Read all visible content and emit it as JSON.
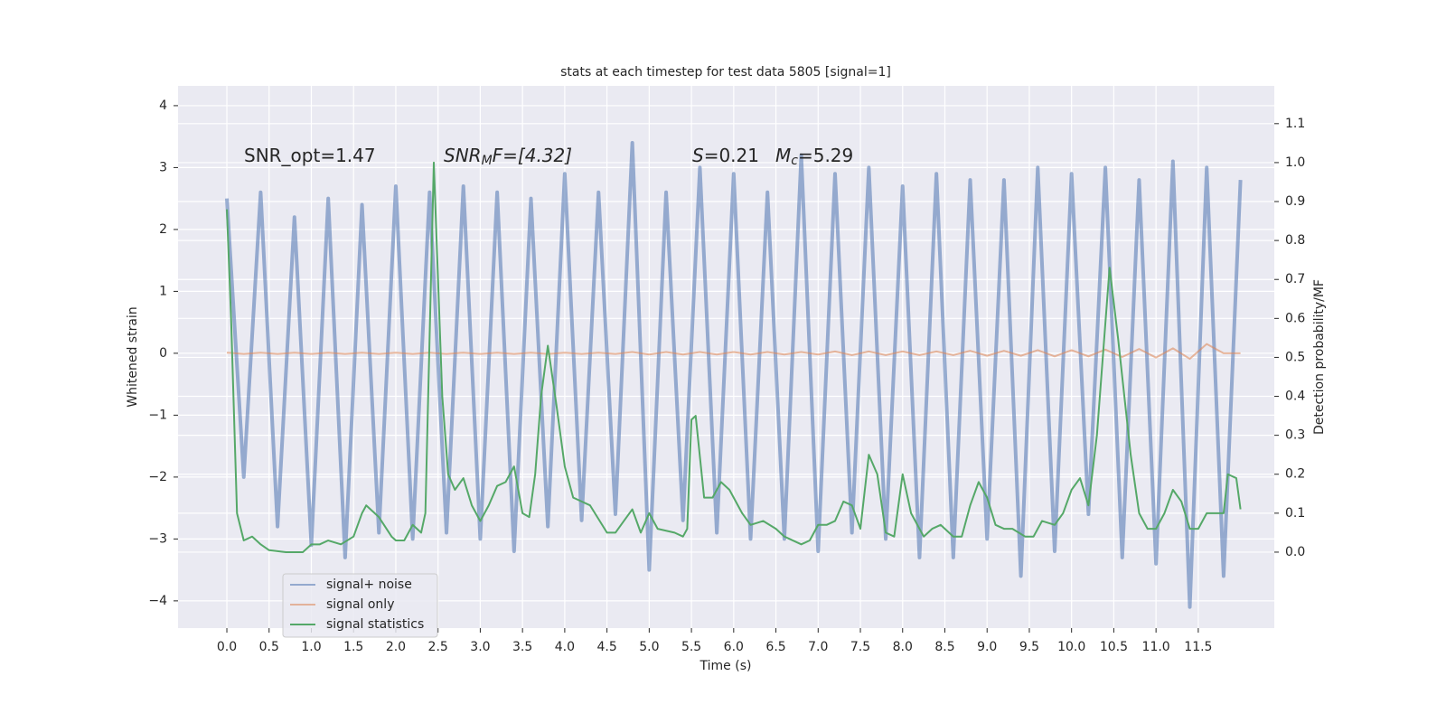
{
  "chart_data": {
    "type": "line",
    "title": "stats at each timestep for test data 5805 [signal=1]",
    "xlabel": "Time (s)",
    "ylabel": "Whitened strain",
    "y2label": "Detection probability/MF",
    "annotations": [
      {
        "parts": [
          "SNR_opt=1.47"
        ]
      },
      {
        "parts": [
          "SNR",
          "M",
          "F=[4.32]"
        ]
      },
      {
        "parts": [
          "S",
          "=0.21"
        ]
      },
      {
        "parts": [
          "M",
          "c",
          "=5.29"
        ]
      }
    ],
    "xlim": [
      -0.578,
      12.4
    ],
    "ylim": [
      -4.44,
      4.32
    ],
    "y2lim": [
      -0.195,
      1.197
    ],
    "grid": true,
    "legend": "lower left",
    "xticks": [
      {
        "value": 0,
        "label": "0.0"
      },
      {
        "value": 0.5,
        "label": "0.5"
      },
      {
        "value": 1,
        "label": "1.0"
      },
      {
        "value": 1.5,
        "label": "1.5"
      },
      {
        "value": 2,
        "label": "2.0"
      },
      {
        "value": 2.5,
        "label": "2.5"
      },
      {
        "value": 3,
        "label": "3.0"
      },
      {
        "value": 3.5,
        "label": "3.5"
      },
      {
        "value": 4,
        "label": "4.0"
      },
      {
        "value": 4.5,
        "label": "4.5"
      },
      {
        "value": 5,
        "label": "5.0"
      },
      {
        "value": 5.5,
        "label": "5.5"
      },
      {
        "value": 6,
        "label": "6.0"
      },
      {
        "value": 6.5,
        "label": "6.5"
      },
      {
        "value": 7,
        "label": "7.0"
      },
      {
        "value": 7.5,
        "label": "7.5"
      },
      {
        "value": 8,
        "label": "8.0"
      },
      {
        "value": 8.5,
        "label": "8.5"
      },
      {
        "value": 9,
        "label": "9.0"
      },
      {
        "value": 9.5,
        "label": "9.5"
      },
      {
        "value": 10,
        "label": "10.0"
      },
      {
        "value": 10.5,
        "label": "10.5"
      },
      {
        "value": 11,
        "label": "11.0"
      },
      {
        "value": 11.5,
        "label": "11.5"
      }
    ],
    "yticks": [
      {
        "value": -4,
        "label": "−4"
      },
      {
        "value": -3,
        "label": "−3"
      },
      {
        "value": -2,
        "label": "−2"
      },
      {
        "value": -1,
        "label": "−1"
      },
      0,
      1,
      2,
      3,
      4
    ],
    "y2ticks": [
      {
        "value": 0,
        "label": "0.0"
      },
      {
        "value": 0.1,
        "label": "0.1"
      },
      {
        "value": 0.2,
        "label": "0.2"
      },
      {
        "value": 0.3,
        "label": "0.3"
      },
      {
        "value": 0.4,
        "label": "0.4"
      },
      {
        "value": 0.5,
        "label": "0.5"
      },
      {
        "value": 0.6,
        "label": "0.6"
      },
      {
        "value": 0.7,
        "label": "0.7"
      },
      {
        "value": 0.8,
        "label": "0.8"
      },
      {
        "value": 0.9,
        "label": "0.9"
      },
      {
        "value": 1.0,
        "label": "1.0"
      },
      {
        "value": 1.1,
        "label": "1.1"
      }
    ],
    "series": [
      {
        "name": "signal+ noise",
        "color": "#4c72b0",
        "x": [
          0,
          0.2,
          0.4,
          0.6,
          0.8,
          1,
          1.2,
          1.4,
          1.6,
          1.8,
          2,
          2.2,
          2.4,
          2.6,
          2.8,
          3,
          3.2,
          3.4,
          3.6,
          3.8,
          4,
          4.2,
          4.4,
          4.6,
          4.8,
          5,
          5.2,
          5.4,
          5.6,
          5.8,
          6,
          6.2,
          6.4,
          6.6,
          6.8,
          7,
          7.2,
          7.4,
          7.6,
          7.8,
          8,
          8.2,
          8.4,
          8.6,
          8.8,
          9,
          9.2,
          9.4,
          9.6,
          9.8,
          10,
          10.2,
          10.4,
          10.6,
          10.8,
          11,
          11.2,
          11.4,
          11.6,
          11.8,
          12
        ],
        "values": [
          2.5,
          -2.0,
          2.6,
          -2.8,
          2.2,
          -3.1,
          2.5,
          -3.3,
          2.4,
          -2.9,
          2.7,
          -3.0,
          2.6,
          -2.9,
          2.7,
          -3.0,
          2.6,
          -3.2,
          2.5,
          -2.8,
          2.9,
          -2.7,
          2.6,
          -2.6,
          3.4,
          -3.5,
          2.6,
          -2.7,
          3.0,
          -2.9,
          2.9,
          -3.0,
          2.6,
          -3.0,
          3.2,
          -3.2,
          2.9,
          -2.9,
          3.0,
          -3.0,
          2.7,
          -3.3,
          2.9,
          -3.3,
          2.8,
          -3.0,
          2.8,
          -3.6,
          3.0,
          -3.2,
          2.9,
          -2.6,
          3.0,
          -3.3,
          2.8,
          -3.4,
          3.1,
          -4.1,
          3.0,
          -3.6,
          2.8
        ]
      },
      {
        "name": "signal only",
        "color": "#dd8452",
        "x": [
          0,
          0.2,
          0.4,
          0.6,
          0.8,
          1,
          1.2,
          1.4,
          1.6,
          1.8,
          2,
          2.2,
          2.4,
          2.6,
          2.8,
          3,
          3.2,
          3.4,
          3.6,
          3.8,
          4,
          4.2,
          4.4,
          4.6,
          4.8,
          5,
          5.2,
          5.4,
          5.6,
          5.8,
          6,
          6.2,
          6.4,
          6.6,
          6.8,
          7,
          7.2,
          7.4,
          7.6,
          7.8,
          8,
          8.2,
          8.4,
          8.6,
          8.8,
          9,
          9.2,
          9.4,
          9.6,
          9.8,
          10,
          10.2,
          10.4,
          10.6,
          10.8,
          11,
          11.2,
          11.4,
          11.6,
          11.8,
          12
        ],
        "values": [
          0.01,
          -0.01,
          0.01,
          -0.01,
          0.01,
          -0.01,
          0.01,
          -0.01,
          0.01,
          -0.01,
          0.01,
          -0.01,
          0.01,
          -0.01,
          0.01,
          -0.01,
          0.01,
          -0.01,
          0.01,
          -0.01,
          0.01,
          -0.01,
          0.01,
          -0.01,
          0.02,
          -0.02,
          0.02,
          -0.02,
          0.02,
          -0.02,
          0.02,
          -0.02,
          0.02,
          -0.02,
          0.02,
          -0.02,
          0.03,
          -0.03,
          0.03,
          -0.03,
          0.03,
          -0.03,
          0.03,
          -0.03,
          0.04,
          -0.04,
          0.04,
          -0.04,
          0.05,
          -0.05,
          0.05,
          -0.05,
          0.06,
          -0.06,
          0.07,
          -0.07,
          0.08,
          -0.09,
          0.15,
          0,
          0
        ]
      },
      {
        "name": "signal statistics",
        "color": "#55a868",
        "axis": "y2",
        "x": [
          0,
          0.05,
          0.12,
          0.2,
          0.3,
          0.4,
          0.5,
          0.7,
          0.9,
          1.0,
          1.1,
          1.2,
          1.35,
          1.5,
          1.6,
          1.65,
          1.8,
          1.95,
          2.0,
          2.1,
          2.2,
          2.3,
          2.35,
          2.45,
          2.55,
          2.62,
          2.7,
          2.8,
          2.9,
          3.0,
          3.1,
          3.2,
          3.3,
          3.4,
          3.5,
          3.58,
          3.65,
          3.72,
          3.8,
          3.9,
          4.0,
          4.1,
          4.3,
          4.5,
          4.6,
          4.7,
          4.8,
          4.9,
          5.0,
          5.1,
          5.3,
          5.4,
          5.45,
          5.5,
          5.55,
          5.65,
          5.75,
          5.85,
          5.95,
          6.1,
          6.2,
          6.35,
          6.5,
          6.6,
          6.8,
          6.9,
          7.0,
          7.1,
          7.2,
          7.3,
          7.4,
          7.5,
          7.6,
          7.7,
          7.8,
          7.9,
          8.0,
          8.1,
          8.25,
          8.35,
          8.45,
          8.6,
          8.7,
          8.8,
          8.9,
          9.0,
          9.1,
          9.2,
          9.3,
          9.45,
          9.55,
          9.65,
          9.8,
          9.9,
          10.0,
          10.1,
          10.2,
          10.3,
          10.45,
          10.55,
          10.7,
          10.8,
          10.9,
          11.0,
          11.1,
          11.2,
          11.3,
          11.4,
          11.5,
          11.6,
          11.7,
          11.8,
          11.85,
          11.95,
          12.0
        ],
        "values": [
          0.88,
          0.6,
          0.1,
          0.03,
          0.04,
          0.02,
          0.005,
          0.0,
          0.0,
          0.02,
          0.02,
          0.03,
          0.02,
          0.04,
          0.1,
          0.12,
          0.09,
          0.04,
          0.03,
          0.03,
          0.07,
          0.05,
          0.1,
          1.0,
          0.4,
          0.2,
          0.16,
          0.19,
          0.12,
          0.08,
          0.12,
          0.17,
          0.18,
          0.22,
          0.1,
          0.09,
          0.2,
          0.4,
          0.53,
          0.38,
          0.22,
          0.14,
          0.12,
          0.05,
          0.05,
          0.08,
          0.11,
          0.05,
          0.1,
          0.06,
          0.05,
          0.04,
          0.06,
          0.34,
          0.35,
          0.14,
          0.14,
          0.18,
          0.16,
          0.1,
          0.07,
          0.08,
          0.06,
          0.04,
          0.02,
          0.03,
          0.07,
          0.07,
          0.08,
          0.13,
          0.12,
          0.06,
          0.25,
          0.2,
          0.05,
          0.04,
          0.2,
          0.1,
          0.04,
          0.06,
          0.07,
          0.04,
          0.04,
          0.12,
          0.18,
          0.14,
          0.07,
          0.06,
          0.06,
          0.04,
          0.04,
          0.08,
          0.07,
          0.1,
          0.16,
          0.19,
          0.12,
          0.3,
          0.73,
          0.55,
          0.25,
          0.1,
          0.06,
          0.06,
          0.1,
          0.16,
          0.13,
          0.06,
          0.06,
          0.1,
          0.1,
          0.1,
          0.2,
          0.19,
          0.11
        ]
      }
    ]
  }
}
